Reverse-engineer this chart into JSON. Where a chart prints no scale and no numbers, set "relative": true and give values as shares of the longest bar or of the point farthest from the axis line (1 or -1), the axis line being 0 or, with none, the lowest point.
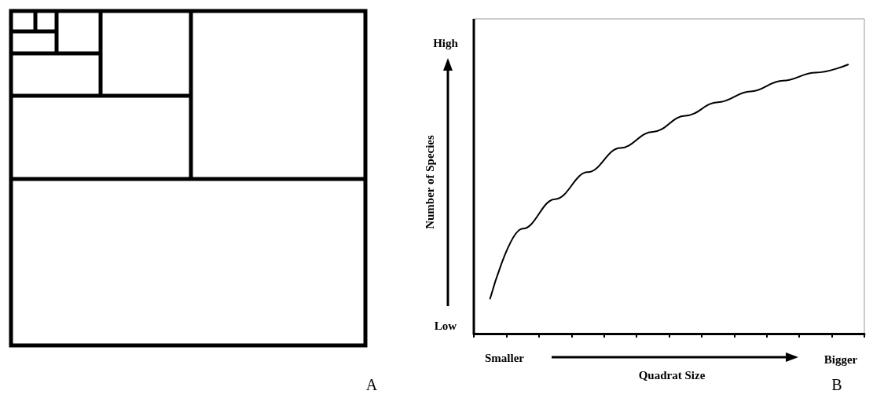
{
  "chart_data": {
    "type": "line",
    "relative": true,
    "xlabel": "Quadrat Size",
    "ylabel": "Number of Species",
    "categories": [
      null,
      null,
      null,
      null,
      null,
      null,
      null,
      null,
      null,
      null,
      null,
      null
    ],
    "series": [
      {
        "color": "#000000",
        "values": [
          0.13,
          0.39,
          0.5,
          0.6,
          0.69,
          0.75,
          0.81,
          0.86,
          0.9,
          0.94,
          0.97,
          1.0
        ]
      }
    ],
    "annotations": [
      "High",
      "Low",
      "Smaller",
      "Bigger",
      "A",
      "B"
    ],
    "marker": "none",
    "line_style": "solid",
    "grid": false
  }
}
